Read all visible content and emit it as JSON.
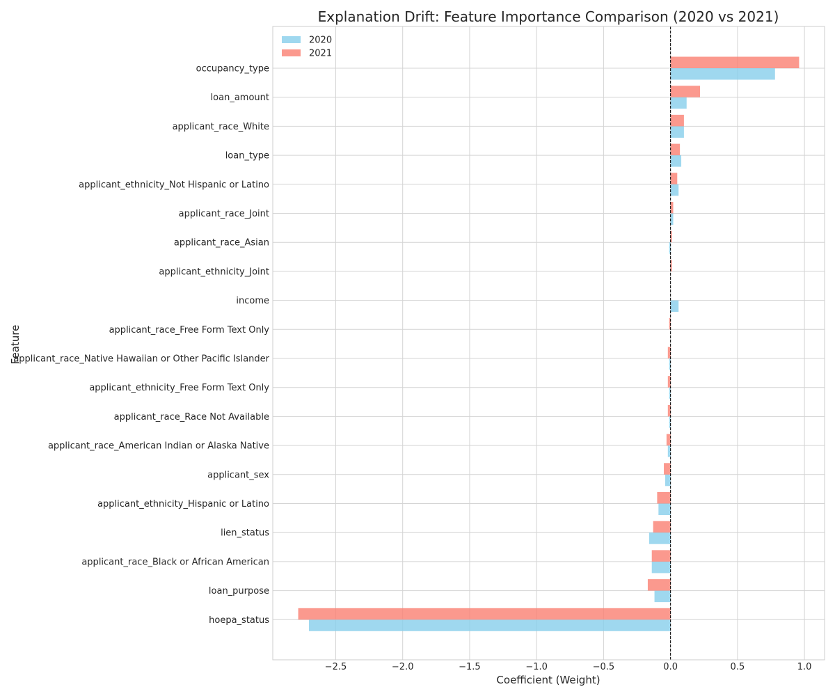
{
  "chart_data": {
    "type": "bar",
    "orientation": "horizontal",
    "title": "Explanation Drift: Feature Importance Comparison (2020 vs 2021)",
    "xlabel": "Coefficient (Weight)",
    "ylabel": "Feature",
    "xlim": [
      -2.97,
      1.15
    ],
    "xticks": [
      -2.5,
      -2.0,
      -1.5,
      -1.0,
      -0.5,
      0.0,
      0.5,
      1.0
    ],
    "xtick_labels": [
      "−2.5",
      "−2.0",
      "−1.5",
      "−1.0",
      "−0.5",
      "0.0",
      "0.5",
      "1.0"
    ],
    "grid": true,
    "legend_position": "top-left",
    "reference_line": 0,
    "categories": [
      "occupancy_type",
      "loan_amount",
      "applicant_race_White",
      "loan_type",
      "applicant_ethnicity_Not Hispanic or Latino",
      "applicant_race_Joint",
      "applicant_race_Asian",
      "applicant_ethnicity_Joint",
      "income",
      "applicant_race_Free Form Text Only",
      "applicant_race_Native Hawaiian or Other Pacific Islander",
      "applicant_ethnicity_Free Form Text Only",
      "applicant_race_Race Not Available",
      "applicant_race_American Indian or Alaska Native",
      "applicant_sex",
      "applicant_ethnicity_Hispanic or Latino",
      "lien_status",
      "applicant_race_Black or African American",
      "loan_purpose",
      "hoepa_status"
    ],
    "series": [
      {
        "name": "2020",
        "color": "#87CEEB",
        "values": [
          0.78,
          0.12,
          0.1,
          0.08,
          0.06,
          0.02,
          -0.01,
          0.0,
          0.06,
          0.0,
          -0.01,
          -0.01,
          -0.01,
          -0.02,
          -0.04,
          -0.09,
          -0.16,
          -0.14,
          -0.12,
          -2.7
        ]
      },
      {
        "name": "2021",
        "color": "#FA8072",
        "values": [
          0.96,
          0.22,
          0.1,
          0.07,
          0.05,
          0.02,
          0.01,
          0.01,
          0.0,
          -0.01,
          -0.02,
          -0.02,
          -0.02,
          -0.03,
          -0.05,
          -0.1,
          -0.13,
          -0.14,
          -0.17,
          -2.78
        ]
      }
    ]
  }
}
